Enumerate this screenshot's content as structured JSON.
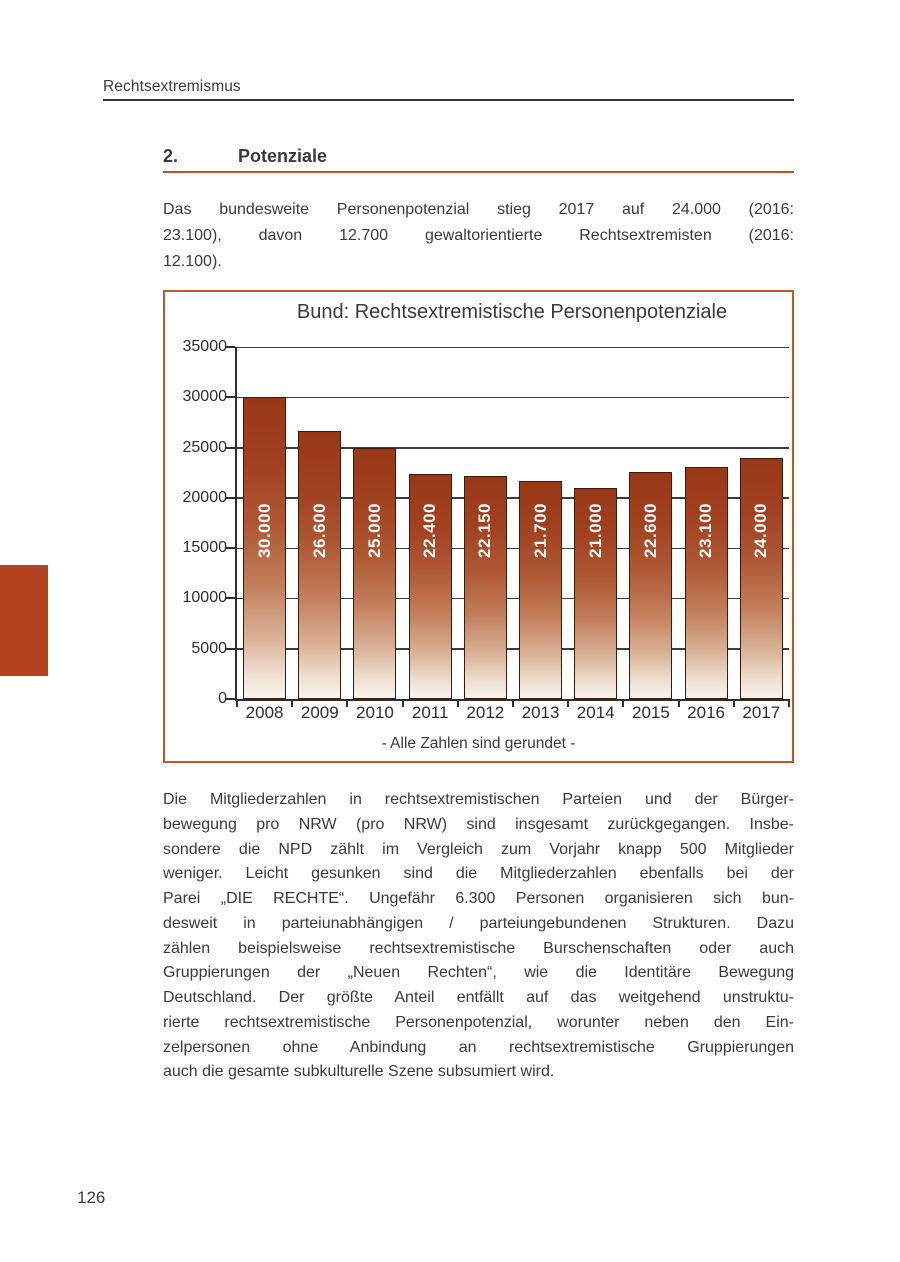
{
  "page": {
    "running_header": "Rechtsextremismus",
    "page_number": "126"
  },
  "section": {
    "number": "2.",
    "title": "Potenziale"
  },
  "intro_paragraph": {
    "lines": [
      "Das bundesweite Personenpotenzial stieg 2017 auf 24.000 (2016:",
      "23.100), davon 12.700 gewaltorientierte Rechtsextremisten (2016:",
      "12.100)."
    ]
  },
  "body_paragraph": {
    "lines": [
      "Die Mitgliederzahlen in rechtsextremistischen Parteien und der Bürger-",
      "bewegung pro NRW (pro NRW) sind insgesamt zurückgegangen. Insbe-",
      "sondere die NPD zählt im Vergleich zum Vorjahr knapp 500 Mitglieder",
      "weniger. Leicht gesunken sind die Mitgliederzahlen ebenfalls bei der",
      "Parei „DIE RECHTE“. Ungefähr 6.300 Personen organisieren sich bun-",
      "desweit in parteiunabhängigen / parteiungebundenen Strukturen. Dazu",
      "zählen beispielsweise rechtsextremistische Burschenschaften oder auch",
      "Gruppierungen der „Neuen Rechten“, wie die Identitäre Bewegung",
      "Deutschland. Der größte Anteil entfällt auf das weitgehend unstruktu-",
      "rierte rechtsextremistische Personenpotenzial, worunter neben den Ein-",
      "zelpersonen ohne Anbindung an rechtsextremistische Gruppierungen",
      "auch die gesamte subkulturelle Szene subsumiert wird."
    ]
  },
  "chart_data": {
    "type": "bar",
    "title": "Bund: Rechtsextremistische Personenpotenziale",
    "caption": "- Alle Zahlen sind gerundet -",
    "categories": [
      "2008",
      "2009",
      "2010",
      "2011",
      "2012",
      "2013",
      "2014",
      "2015",
      "2016",
      "2017"
    ],
    "values": [
      30000,
      26600,
      25000,
      22400,
      22150,
      21700,
      21000,
      22600,
      23100,
      24000
    ],
    "bar_labels": [
      "30.000",
      "26.600",
      "25.000",
      "22.400",
      "22.150",
      "21.700",
      "21.000",
      "22.600",
      "23.100",
      "24.000"
    ],
    "xlabel": "",
    "ylabel": "",
    "ylim": [
      0,
      35000
    ],
    "yticks": [
      0,
      5000,
      10000,
      15000,
      20000,
      25000,
      30000,
      35000
    ],
    "grid": true,
    "legend_position": "none",
    "bar_gradient_top": "#993816",
    "bar_gradient_bottom": "#f8f4f0",
    "bar_value_label_color": "#ffffff"
  },
  "colors": {
    "text": "#3a3a3a",
    "header_rule": "#33373a",
    "accent_rule": "#c94e1d",
    "chart_border": "#c15629",
    "margin_block": "#b2431e"
  }
}
